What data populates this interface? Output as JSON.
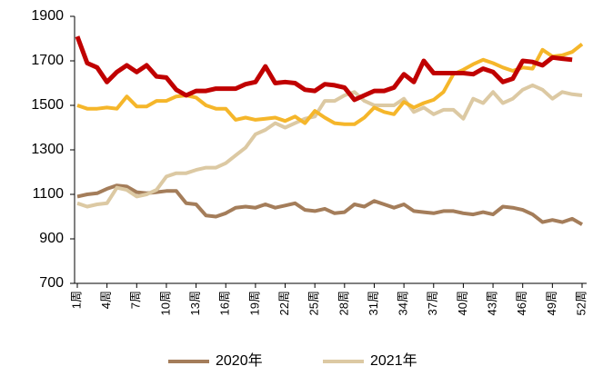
{
  "chart_data": {
    "type": "line",
    "categories": [
      "1周",
      null,
      null,
      "4周",
      null,
      null,
      "7周",
      null,
      null,
      "10周",
      null,
      null,
      "13周",
      null,
      null,
      "16周",
      null,
      null,
      "19周",
      null,
      null,
      "22周",
      null,
      null,
      "25周",
      null,
      null,
      "28周",
      null,
      null,
      "31周",
      null,
      null,
      "34周",
      null,
      null,
      "37周",
      null,
      null,
      "40周",
      null,
      null,
      "43周",
      null,
      null,
      "46周",
      null,
      null,
      "49周",
      null,
      null,
      "52周"
    ],
    "series": [
      {
        "name": "2020年",
        "color": "#a47d5a",
        "values": [
          1090,
          1100,
          1105,
          1125,
          1140,
          1135,
          1110,
          1105,
          1110,
          1115,
          1115,
          1060,
          1055,
          1005,
          1000,
          1015,
          1040,
          1045,
          1040,
          1055,
          1040,
          1050,
          1060,
          1030,
          1025,
          1035,
          1015,
          1020,
          1055,
          1045,
          1070,
          1055,
          1040,
          1055,
          1025,
          1020,
          1015,
          1025,
          1025,
          1015,
          1010,
          1020,
          1010,
          1045,
          1040,
          1030,
          1010,
          975,
          985,
          975,
          990,
          965
        ]
      },
      {
        "name": "2021年",
        "color": "#dcc9a3",
        "values": [
          1060,
          1045,
          1055,
          1060,
          1130,
          1120,
          1090,
          1100,
          1120,
          1180,
          1195,
          1195,
          1210,
          1220,
          1220,
          1240,
          1275,
          1310,
          1370,
          1390,
          1420,
          1400,
          1420,
          1440,
          1450,
          1520,
          1520,
          1545,
          1560,
          1520,
          1500,
          1500,
          1500,
          1530,
          1470,
          1490,
          1460,
          1480,
          1480,
          1440,
          1530,
          1510,
          1560,
          1510,
          1530,
          1570,
          1590,
          1570,
          1530,
          1560,
          1550,
          1545
        ]
      },
      {
        "color": "#f5b62a",
        "values": [
          1500,
          1485,
          1485,
          1490,
          1485,
          1540,
          1495,
          1495,
          1520,
          1520,
          1540,
          1545,
          1535,
          1500,
          1485,
          1485,
          1435,
          1445,
          1435,
          1440,
          1445,
          1430,
          1450,
          1420,
          1475,
          1445,
          1420,
          1415,
          1415,
          1445,
          1490,
          1470,
          1460,
          1515,
          1490,
          1510,
          1525,
          1560,
          1640,
          1660,
          1685,
          1705,
          1690,
          1670,
          1655,
          1670,
          1665,
          1750,
          1720,
          1725,
          1740,
          1775
        ]
      },
      {
        "color": "#c00000",
        "values": [
          1810,
          1690,
          1670,
          1605,
          1650,
          1680,
          1650,
          1680,
          1630,
          1625,
          1570,
          1545,
          1565,
          1565,
          1575,
          1575,
          1575,
          1595,
          1605,
          1675,
          1600,
          1605,
          1600,
          1570,
          1565,
          1595,
          1590,
          1580,
          1525,
          1545,
          1565,
          1565,
          1580,
          1640,
          1605,
          1700,
          1645,
          1645,
          1645,
          1645,
          1640,
          1665,
          1650,
          1605,
          1620,
          1700,
          1695,
          1680,
          1715,
          1710,
          1705,
          null
        ]
      }
    ],
    "ylim": [
      700,
      1900
    ],
    "yticks": [
      700,
      900,
      1100,
      1300,
      1500,
      1700,
      1900
    ]
  }
}
